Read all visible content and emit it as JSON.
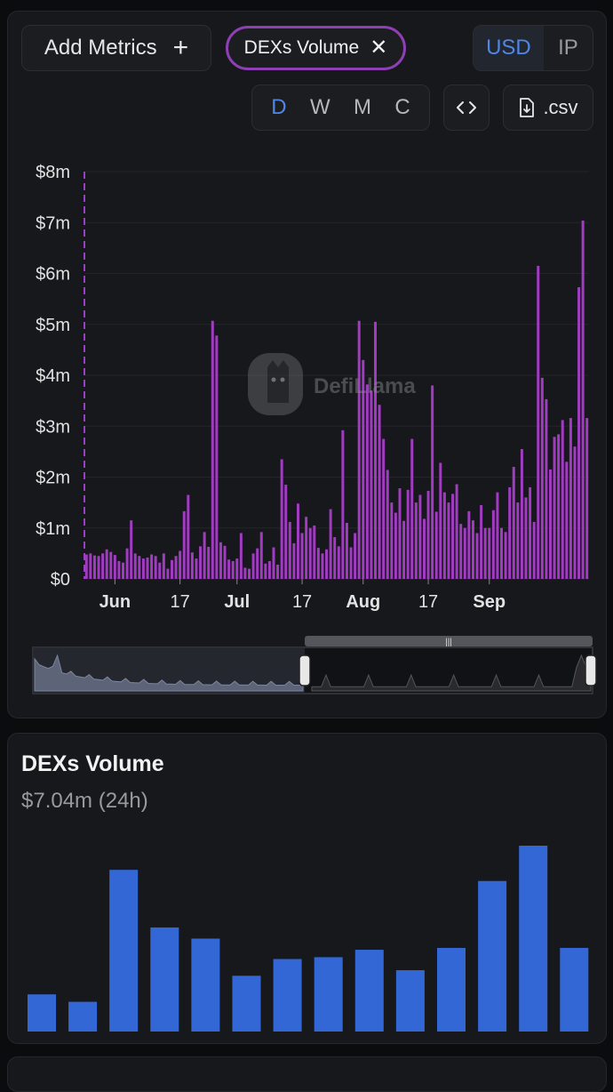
{
  "controls": {
    "add_metrics_label": "Add Metrics",
    "add_icon": "plus-icon",
    "metric_chip_label": "DEXs Volume",
    "remove_icon": "close-icon",
    "currency": [
      "USD",
      "IP"
    ],
    "currency_selected": "USD",
    "intervals": [
      "D",
      "W",
      "M",
      "C"
    ],
    "interval_selected": "D",
    "embed_icon": "code-icon",
    "csv_label": ".csv",
    "csv_icon": "file-download-icon"
  },
  "watermark": "DefiLlama",
  "colors": {
    "bar": "#a13cc2",
    "mini_bar": "#3467d6",
    "accent": "#4f86e8",
    "chip_border": "#8d3fb3"
  },
  "chart_data": [
    {
      "type": "bar",
      "ylim": [
        0,
        8
      ],
      "y_unit": "$m",
      "yticks": [
        "$0",
        "$1m",
        "$2m",
        "$3m",
        "$4m",
        "$5m",
        "$6m",
        "$7m",
        "$8m"
      ],
      "x_tick_labels": [
        "Jun",
        "17",
        "Jul",
        "17",
        "Aug",
        "17",
        "Sep"
      ],
      "x_tick_index": [
        7,
        23,
        37,
        53,
        68,
        84,
        99
      ],
      "values": [
        0.48,
        0.5,
        0.46,
        0.45,
        0.5,
        0.58,
        0.53,
        0.47,
        0.35,
        0.32,
        0.6,
        1.15,
        0.5,
        0.45,
        0.4,
        0.42,
        0.48,
        0.45,
        0.32,
        0.5,
        0.2,
        0.37,
        0.45,
        0.55,
        1.33,
        1.65,
        0.52,
        0.4,
        0.64,
        0.92,
        0.63,
        5.07,
        4.78,
        0.72,
        0.65,
        0.38,
        0.35,
        0.4,
        0.9,
        0.22,
        0.2,
        0.5,
        0.6,
        0.92,
        0.3,
        0.35,
        0.62,
        0.28,
        2.35,
        1.85,
        1.12,
        0.7,
        1.48,
        0.9,
        1.22,
        1.0,
        1.05,
        0.61,
        0.5,
        0.58,
        1.37,
        0.82,
        0.64,
        2.92,
        1.1,
        0.62,
        0.9,
        5.07,
        4.3,
        3.82,
        3.7,
        5.05,
        3.42,
        2.75,
        2.14,
        1.5,
        1.3,
        1.78,
        1.14,
        1.75,
        2.75,
        1.5,
        1.65,
        1.18,
        1.73,
        3.8,
        1.32,
        2.28,
        1.7,
        1.5,
        1.67,
        1.86,
        1.08,
        1.0,
        1.33,
        1.15,
        0.9,
        1.45,
        1.0,
        1.0,
        1.35,
        1.7,
        1.0,
        0.92,
        1.8,
        2.2,
        1.5,
        2.55,
        1.6,
        1.8,
        1.12,
        6.15,
        3.95,
        3.53,
        2.15,
        2.79,
        2.84,
        3.12,
        2.3,
        3.16,
        2.6,
        5.73,
        7.04,
        3.16
      ]
    },
    {
      "type": "bar",
      "title": "DEXs Volume",
      "value_label": "$7.04m",
      "period_label": "(24h)",
      "values": [
        0.2,
        0.16,
        0.87,
        0.56,
        0.5,
        0.3,
        0.39,
        0.4,
        0.44,
        0.33,
        0.45,
        0.81,
        1.0,
        0.45
      ]
    }
  ]
}
